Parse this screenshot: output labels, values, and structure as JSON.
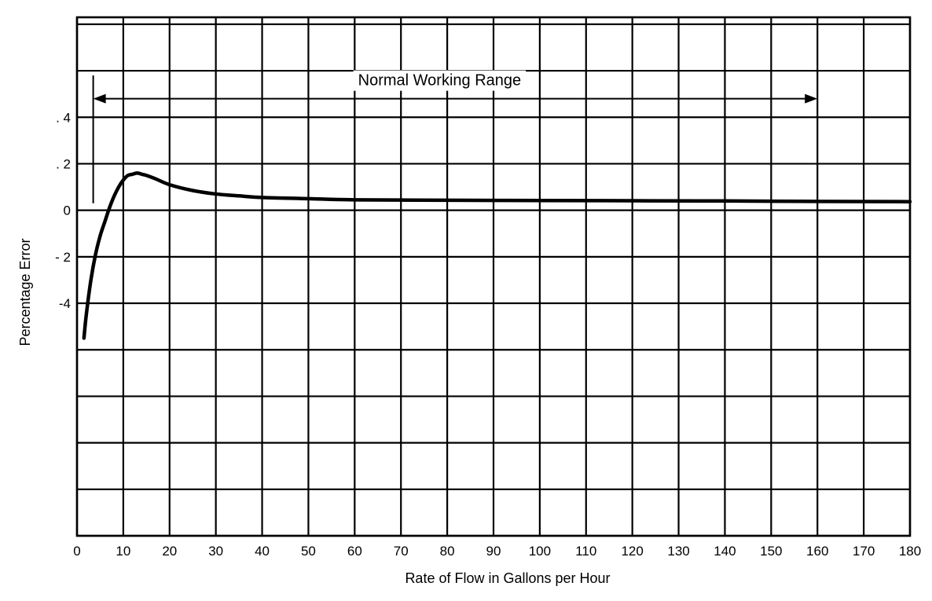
{
  "chart_data": {
    "type": "line",
    "title": "",
    "xlabel": "Rate of Flow in Gallons per Hour",
    "ylabel": "Percentage Error",
    "xlim": [
      0,
      180
    ],
    "ylim": [
      -14,
      8.3
    ],
    "grid": true,
    "x_ticks": [
      0,
      10,
      20,
      30,
      40,
      50,
      60,
      70,
      80,
      90,
      100,
      110,
      120,
      130,
      140,
      150,
      160,
      170,
      180
    ],
    "x_tick_labels": [
      "0",
      "10",
      "20",
      "30",
      "40",
      "50",
      "60",
      "70",
      "80",
      "90",
      "100",
      "110",
      "120",
      "130",
      "140",
      "150",
      "160",
      "170",
      "180"
    ],
    "y_ticks": [
      4,
      2,
      0,
      -2,
      -4
    ],
    "y_tick_labels": [
      ". 4",
      ". 2",
      "0",
      "- 2",
      "-4"
    ],
    "series": [
      {
        "x": [
          1.5,
          2,
          3,
          4,
          5,
          6,
          7,
          8,
          9,
          10,
          11,
          12,
          13,
          14,
          15,
          17,
          20,
          25,
          30,
          35,
          40,
          50,
          60,
          80,
          100,
          120,
          140,
          160,
          180
        ],
        "y": [
          -5.5,
          -4.5,
          -3.0,
          -1.9,
          -1.1,
          -0.5,
          0.1,
          0.6,
          1.0,
          1.3,
          1.5,
          1.55,
          1.6,
          1.55,
          1.5,
          1.35,
          1.1,
          0.85,
          0.7,
          0.62,
          0.55,
          0.5,
          0.45,
          0.43,
          0.42,
          0.41,
          0.4,
          0.38,
          0.37
        ]
      }
    ],
    "annotations": [
      {
        "text": "Normal Working Range",
        "x_start": 3.5,
        "x_end": 160,
        "y": 4.8
      },
      {
        "text": "",
        "x": 3.5,
        "y_top": 5.8,
        "y_bottom": 0.3
      }
    ]
  }
}
